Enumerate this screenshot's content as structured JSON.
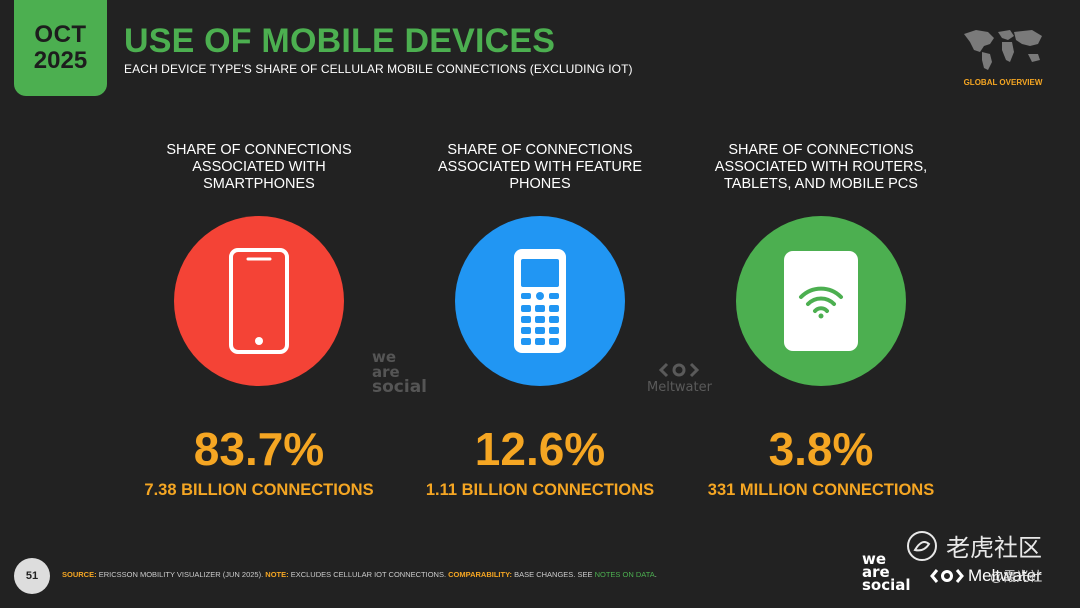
{
  "header": {
    "month": "OCT",
    "year": "2025",
    "title": "USE OF MOBILE DEVICES",
    "subtitle": "EACH DEVICE TYPE'S SHARE OF CELLULAR MOBILE CONNECTIONS (EXCLUDING IOT)",
    "region": "GLOBAL OVERVIEW"
  },
  "columns": [
    {
      "caption": "SHARE OF CONNECTIONS ASSOCIATED WITH SMARTPHONES",
      "value": "83.7%",
      "sub": "7.38 BILLION CONNECTIONS",
      "icon": "smartphone-icon",
      "color": "#f44336"
    },
    {
      "caption": "SHARE OF CONNECTIONS ASSOCIATED WITH FEATURE PHONES",
      "value": "12.6%",
      "sub": "1.11 BILLION CONNECTIONS",
      "icon": "feature-phone-icon",
      "color": "#2196f3"
    },
    {
      "caption": "SHARE OF CONNECTIONS ASSOCIATED WITH ROUTERS, TABLETS, AND MOBILE PCS",
      "value": "3.8%",
      "sub": "331 MILLION CONNECTIONS",
      "icon": "router-icon",
      "color": "#4caf50"
    }
  ],
  "watermarks": {
    "we_are_social": [
      "we",
      "are",
      "social"
    ],
    "meltwater": "Meltwater"
  },
  "footer": {
    "page": "51",
    "source_label": "SOURCE:",
    "source_text": "ERICSSON MOBILITY VISUALIZER (JUN 2025).",
    "note_label": "NOTE:",
    "note_text": "EXCLUDES CELLULAR IOT CONNECTIONS.",
    "comp_label": "COMPARABILITY:",
    "comp_text": "BASE CHANGES. SEE",
    "comp_link": "NOTES ON DATA",
    "comp_end": "."
  },
  "logos": {
    "we_are_social": [
      "we",
      "are",
      "social"
    ],
    "meltwater": "Meltwater",
    "tiger_community": "老虎社区",
    "tiger_sub": "@霞光社"
  },
  "colors": {
    "accent_green": "#4caf50",
    "accent_orange": "#f5a623",
    "background": "#222222"
  }
}
